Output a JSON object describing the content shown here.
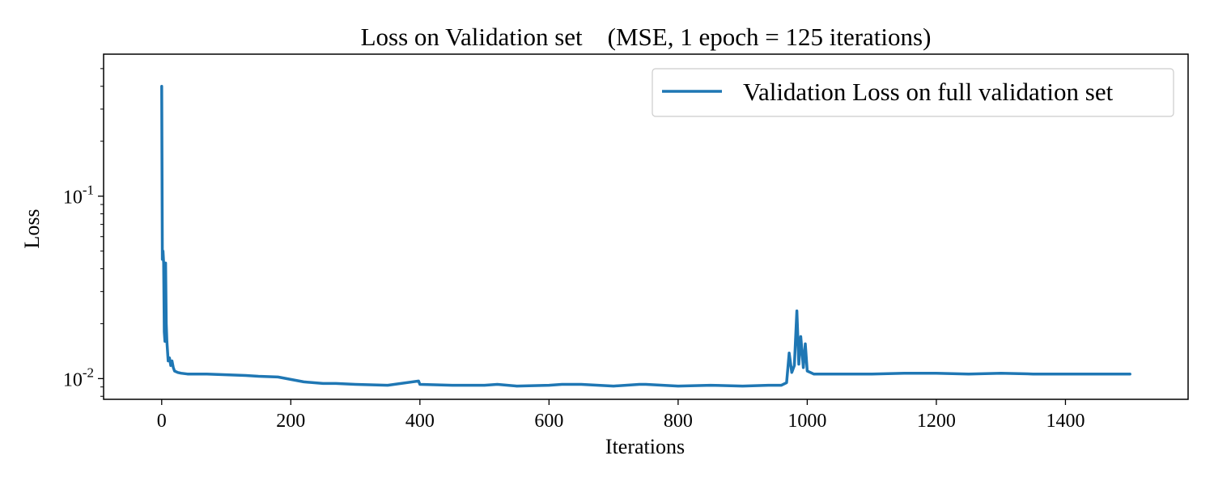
{
  "chart_data": {
    "type": "line",
    "title": "Loss on Validation set    (MSE, 1 epoch = 125 iterations)",
    "xlabel": "Iterations",
    "ylabel": "Loss",
    "xlim": [
      -90,
      1590
    ],
    "ylim": [
      0.0077,
      0.6
    ],
    "yscale": "log",
    "grid": false,
    "legend_position": "top-right",
    "x_ticks": [
      0,
      200,
      400,
      600,
      800,
      1000,
      1200,
      1400
    ],
    "x_tick_labels": [
      "0",
      "200",
      "400",
      "600",
      "800",
      "1000",
      "1200",
      "1400"
    ],
    "y_ticks": [
      0.01,
      0.1
    ],
    "y_tick_labels": [
      {
        "base": "10",
        "exp": "-2"
      },
      {
        "base": "10",
        "exp": "-1"
      }
    ],
    "series": [
      {
        "name": "Validation Loss on full validation set",
        "color": "#1f77b4",
        "x": [
          0,
          1,
          2,
          3,
          4,
          5,
          6,
          7,
          8,
          10,
          12,
          14,
          16,
          18,
          20,
          25,
          30,
          40,
          50,
          70,
          100,
          130,
          150,
          180,
          200,
          220,
          250,
          270,
          300,
          350,
          398,
          400,
          450,
          500,
          520,
          550,
          600,
          620,
          650,
          700,
          740,
          750,
          800,
          850,
          900,
          940,
          960,
          968,
          972,
          976,
          980,
          984,
          987,
          990,
          994,
          997,
          1000,
          1005,
          1010,
          1050,
          1100,
          1150,
          1200,
          1250,
          1300,
          1350,
          1400,
          1450,
          1500
        ],
        "y": [
          0.4,
          0.045,
          0.05,
          0.043,
          0.018,
          0.016,
          0.043,
          0.02,
          0.016,
          0.0125,
          0.013,
          0.0118,
          0.0125,
          0.0115,
          0.011,
          0.0108,
          0.0107,
          0.0106,
          0.0106,
          0.0106,
          0.0105,
          0.0104,
          0.0103,
          0.0102,
          0.0099,
          0.0096,
          0.0094,
          0.0094,
          0.0093,
          0.0092,
          0.0097,
          0.0093,
          0.0092,
          0.0092,
          0.0093,
          0.0091,
          0.0092,
          0.0093,
          0.0093,
          0.0091,
          0.0093,
          0.0093,
          0.0091,
          0.0092,
          0.0091,
          0.0092,
          0.0092,
          0.0095,
          0.0138,
          0.0108,
          0.0118,
          0.0235,
          0.012,
          0.017,
          0.0115,
          0.0155,
          0.011,
          0.0108,
          0.0106,
          0.0106,
          0.0106,
          0.0107,
          0.0107,
          0.0106,
          0.0107,
          0.0106,
          0.0106,
          0.0106,
          0.0106
        ]
      }
    ]
  }
}
